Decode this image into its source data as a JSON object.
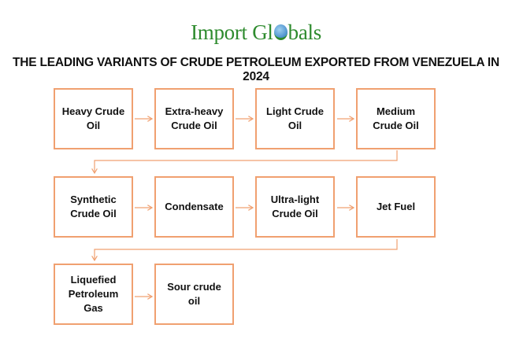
{
  "logo": {
    "text_before": "Import Gl",
    "text_after": "bals"
  },
  "title": "THE LEADING VARIANTS OF CRUDE PETROLEUM EXPORTED FROM VENEZUELA IN 2024",
  "steps": [
    "Heavy Crude Oil",
    "Extra-heavy Crude Oil",
    "Light Crude Oil",
    "Medium Crude Oil",
    "Synthetic Crude Oil",
    "Condensate",
    "Ultra-light Crude Oil",
    "Jet Fuel",
    "Liquefied Petroleum Gas",
    "Sour crude oil"
  ],
  "colors": {
    "box_border": "#f0a070",
    "logo": "#2e8b2e"
  }
}
